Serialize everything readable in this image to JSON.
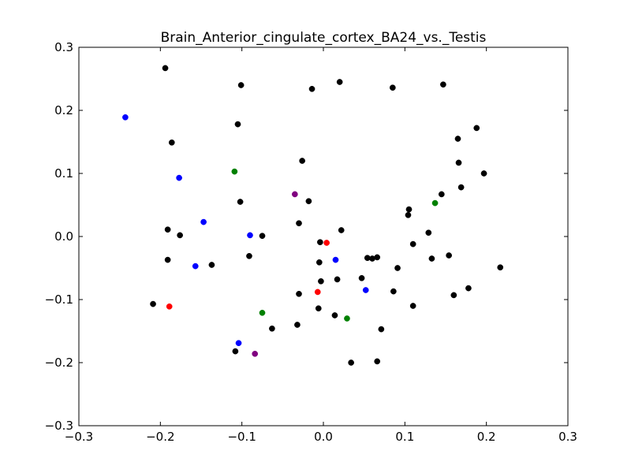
{
  "chart_data": {
    "type": "scatter",
    "title": "Brain_Anterior_cingulate_cortex_BA24_vs._Testis",
    "xlabel": "",
    "ylabel": "",
    "xlim": [
      -0.3,
      0.3
    ],
    "ylim": [
      -0.3,
      0.3
    ],
    "xticks": [
      "−0.3",
      "−0.2",
      "−0.1",
      "0.0",
      "0.1",
      "0.2",
      "0.3"
    ],
    "yticks": [
      "−0.3",
      "−0.2",
      "−0.1",
      "0.0",
      "0.1",
      "0.2",
      "0.3"
    ],
    "grid": false,
    "series": [
      {
        "color": "#000000",
        "points": [
          [
            -0.194,
            0.267
          ],
          [
            -0.101,
            0.24
          ],
          [
            -0.014,
            0.234
          ],
          [
            0.02,
            0.245
          ],
          [
            0.085,
            0.236
          ],
          [
            0.147,
            0.241
          ],
          [
            -0.105,
            0.178
          ],
          [
            -0.186,
            0.149
          ],
          [
            0.188,
            0.172
          ],
          [
            0.165,
            0.155
          ],
          [
            0.166,
            0.117
          ],
          [
            0.197,
            0.1
          ],
          [
            -0.026,
            0.12
          ],
          [
            0.169,
            0.078
          ],
          [
            0.145,
            0.067
          ],
          [
            -0.102,
            0.055
          ],
          [
            -0.018,
            0.056
          ],
          [
            0.105,
            0.043
          ],
          [
            0.104,
            0.034
          ],
          [
            -0.191,
            0.011
          ],
          [
            -0.176,
            0.002
          ],
          [
            -0.03,
            0.021
          ],
          [
            0.022,
            0.01
          ],
          [
            -0.075,
            0.001
          ],
          [
            0.129,
            0.006
          ],
          [
            -0.004,
            -0.009
          ],
          [
            0.11,
            -0.012
          ],
          [
            -0.191,
            -0.037
          ],
          [
            -0.137,
            -0.045
          ],
          [
            -0.091,
            -0.031
          ],
          [
            -0.005,
            -0.041
          ],
          [
            0.054,
            -0.034
          ],
          [
            0.06,
            -0.035
          ],
          [
            0.066,
            -0.033
          ],
          [
            0.133,
            -0.035
          ],
          [
            0.154,
            -0.03
          ],
          [
            0.091,
            -0.05
          ],
          [
            0.217,
            -0.049
          ],
          [
            0.047,
            -0.066
          ],
          [
            0.017,
            -0.068
          ],
          [
            -0.003,
            -0.071
          ],
          [
            0.178,
            -0.082
          ],
          [
            0.086,
            -0.087
          ],
          [
            0.16,
            -0.093
          ],
          [
            -0.03,
            -0.091
          ],
          [
            -0.209,
            -0.107
          ],
          [
            0.11,
            -0.11
          ],
          [
            -0.006,
            -0.114
          ],
          [
            0.014,
            -0.125
          ],
          [
            -0.032,
            -0.14
          ],
          [
            -0.063,
            -0.146
          ],
          [
            0.071,
            -0.147
          ],
          [
            -0.108,
            -0.182
          ],
          [
            0.034,
            -0.2
          ],
          [
            0.066,
            -0.198
          ]
        ]
      },
      {
        "color": "#0000ff",
        "points": [
          [
            -0.243,
            0.189
          ],
          [
            -0.177,
            0.093
          ],
          [
            -0.147,
            0.023
          ],
          [
            -0.09,
            0.002
          ],
          [
            -0.157,
            -0.047
          ],
          [
            0.015,
            -0.037
          ],
          [
            0.052,
            -0.085
          ],
          [
            -0.104,
            -0.169
          ]
        ]
      },
      {
        "color": "#008000",
        "points": [
          [
            -0.109,
            0.103
          ],
          [
            0.137,
            0.053
          ],
          [
            -0.075,
            -0.121
          ],
          [
            0.029,
            -0.13
          ]
        ]
      },
      {
        "color": "#ff0000",
        "points": [
          [
            0.004,
            -0.01
          ],
          [
            -0.007,
            -0.088
          ],
          [
            -0.189,
            -0.111
          ]
        ]
      },
      {
        "color": "#800080",
        "points": [
          [
            -0.035,
            0.067
          ],
          [
            -0.084,
            -0.186
          ]
        ]
      }
    ]
  }
}
